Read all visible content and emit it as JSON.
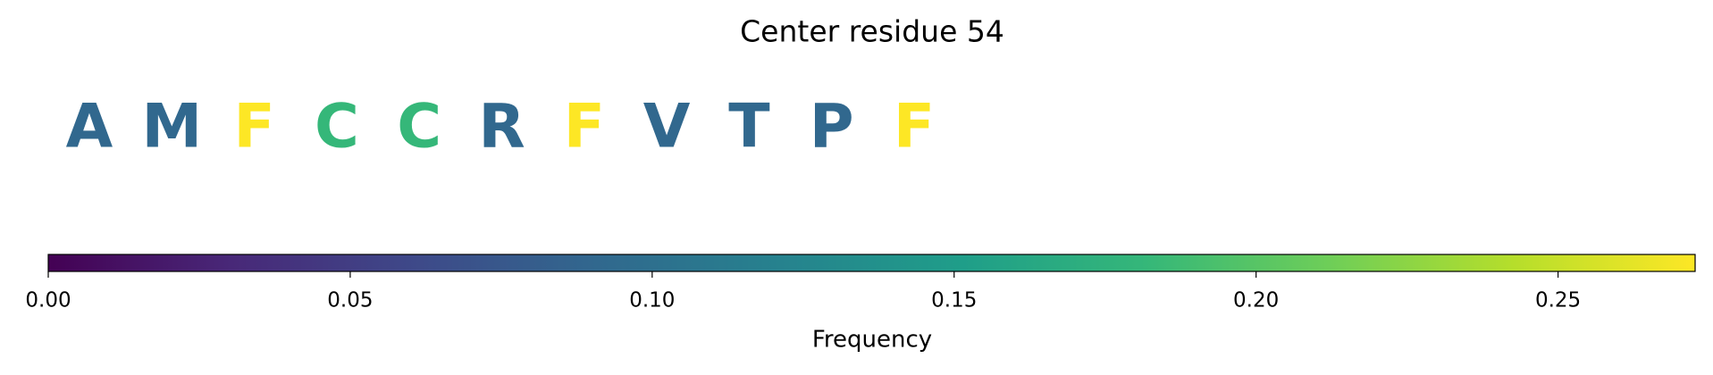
{
  "chart_data": {
    "type": "colored-letters",
    "title": "Center residue 54",
    "categories": [
      "A",
      "M",
      "F",
      "C",
      "C",
      "R",
      "F",
      "V",
      "T",
      "P",
      "F"
    ],
    "values": [
      0.0909,
      0.0909,
      0.2727,
      0.1818,
      0.1818,
      0.0909,
      0.2727,
      0.0909,
      0.0909,
      0.0909,
      0.2727
    ],
    "colormap": "viridis",
    "xlabel": "Frequency",
    "xlim": [
      0,
      0.2727
    ],
    "xticks": [
      {
        "value": 0,
        "label": "0.00"
      },
      {
        "value": 0.05,
        "label": "0.05"
      },
      {
        "value": 0.1,
        "label": "0.10"
      },
      {
        "value": 0.15,
        "label": "0.15"
      },
      {
        "value": 0.2,
        "label": "0.20"
      },
      {
        "value": 0.25,
        "label": "0.25"
      }
    ]
  }
}
